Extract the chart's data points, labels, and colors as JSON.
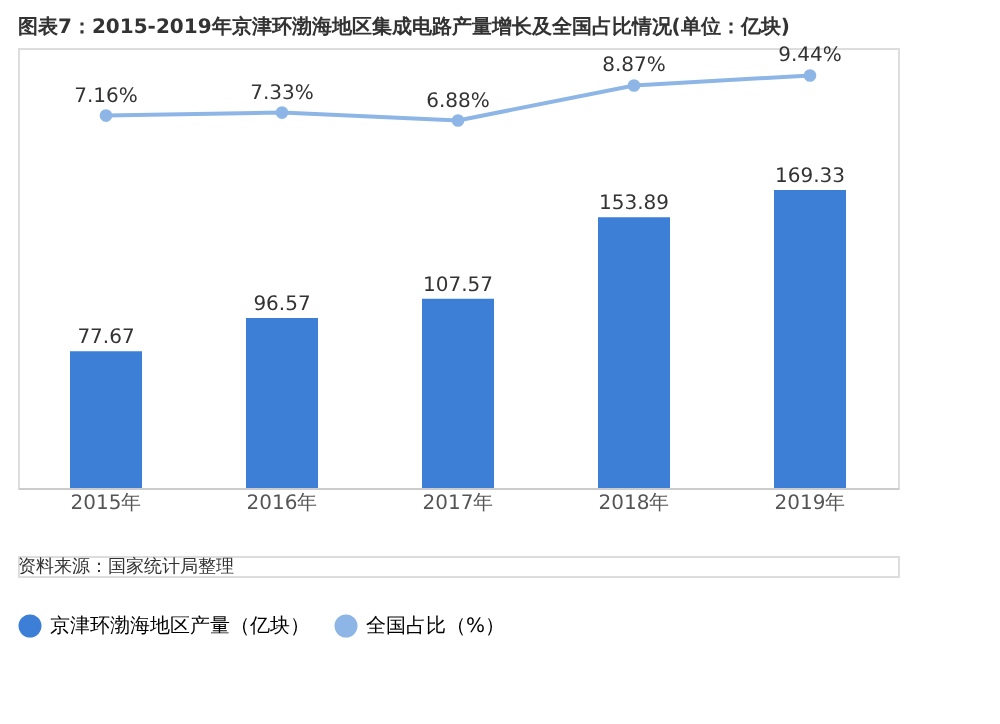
{
  "chart_data": {
    "type": "bar",
    "title": "图表7：2015-2019年京津环渤海地区集成电路产量增长及全国占比情况(单位：亿块)",
    "categories": [
      "2015年",
      "2016年",
      "2017年",
      "2018年",
      "2019年"
    ],
    "series": [
      {
        "name": "京津环渤海地区产量（亿块）",
        "color": "#3d7fd6",
        "values": [
          77.67,
          96.57,
          107.57,
          153.89,
          169.33
        ]
      },
      {
        "name": "全国占比（%）",
        "type": "line",
        "axis": "y2",
        "color": "#8db6e6",
        "marker": "circle",
        "values": [
          7.16,
          7.33,
          6.88,
          8.87,
          9.44
        ],
        "value_labels": [
          "7.16%",
          "7.33%",
          "6.88%",
          "8.87%",
          "9.44%"
        ]
      }
    ],
    "ylim": [
      0,
      250
    ],
    "y2lim": [
      -14,
      11
    ],
    "data_labels": true,
    "legend": "bottom",
    "annotations": [
      "资料来源：国家统计局整理"
    ]
  }
}
